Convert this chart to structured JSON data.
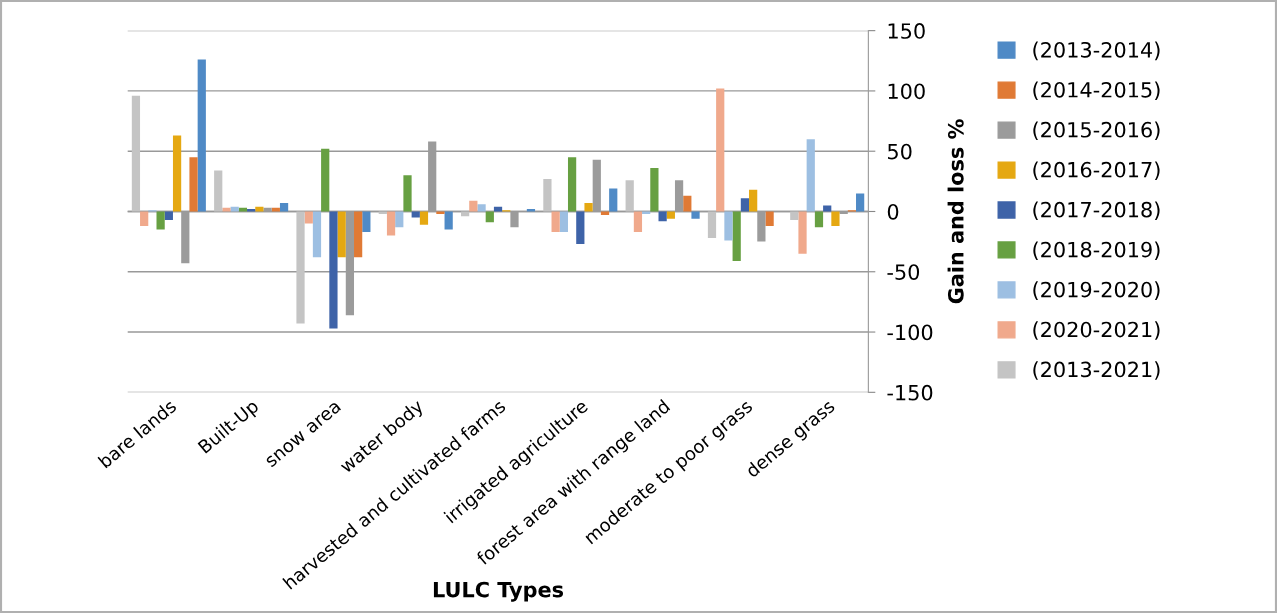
{
  "chart_data": {
    "type": "bar",
    "xlabel": "LULC Types",
    "ylabel": "Gain and loss %",
    "categories": [
      "bare lands",
      "Built-Up",
      "snow area",
      "water body",
      "harvested and cultivated farms",
      "irrigated agriculture",
      "forest area with range land",
      "moderate to poor grass",
      "dense grass"
    ],
    "series": [
      {
        "name": "(2013-2014)",
        "color": "#4f8ac6",
        "values": [
          126,
          7,
          -17,
          -15,
          2,
          19,
          -6,
          0,
          15
        ]
      },
      {
        "name": "(2014-2015)",
        "color": "#e07a35",
        "values": [
          45,
          3,
          -38,
          -2,
          0,
          -3,
          13,
          -12,
          1
        ]
      },
      {
        "name": "(2015-2016)",
        "color": "#9b9b9b",
        "values": [
          -43,
          3,
          -86,
          58,
          -13,
          43,
          26,
          -25,
          -2
        ]
      },
      {
        "name": "(2016-2017)",
        "color": "#e5a812",
        "values": [
          63,
          4,
          -38,
          -11,
          1,
          7,
          -6,
          18,
          -12
        ]
      },
      {
        "name": "(2017-2018)",
        "color": "#3e63a8",
        "values": [
          -7,
          2,
          -97,
          -5,
          4,
          -27,
          -8,
          11,
          5
        ]
      },
      {
        "name": "(2018-2019)",
        "color": "#67a042",
        "values": [
          -15,
          3,
          52,
          30,
          -9,
          45,
          36,
          -41,
          -13
        ]
      },
      {
        "name": "(2019-2020)",
        "color": "#9dbfe2",
        "values": [
          1,
          4,
          -38,
          -13,
          6,
          -17,
          -2,
          -24,
          60
        ]
      },
      {
        "name": "(2020-2021)",
        "color": "#f0a98c",
        "values": [
          -12,
          3,
          -10,
          -20,
          9,
          -17,
          -17,
          102,
          -35
        ]
      },
      {
        "name": "(2013-2021)",
        "color": "#c4c4c4",
        "values": [
          96,
          34,
          -93,
          -2,
          -4,
          27,
          26,
          -22,
          -7
        ]
      }
    ],
    "ylim": [
      -150,
      150
    ],
    "yticks": [
      -150,
      -100,
      -50,
      0,
      50,
      100,
      150
    ],
    "grid": "y",
    "legend": "right"
  }
}
